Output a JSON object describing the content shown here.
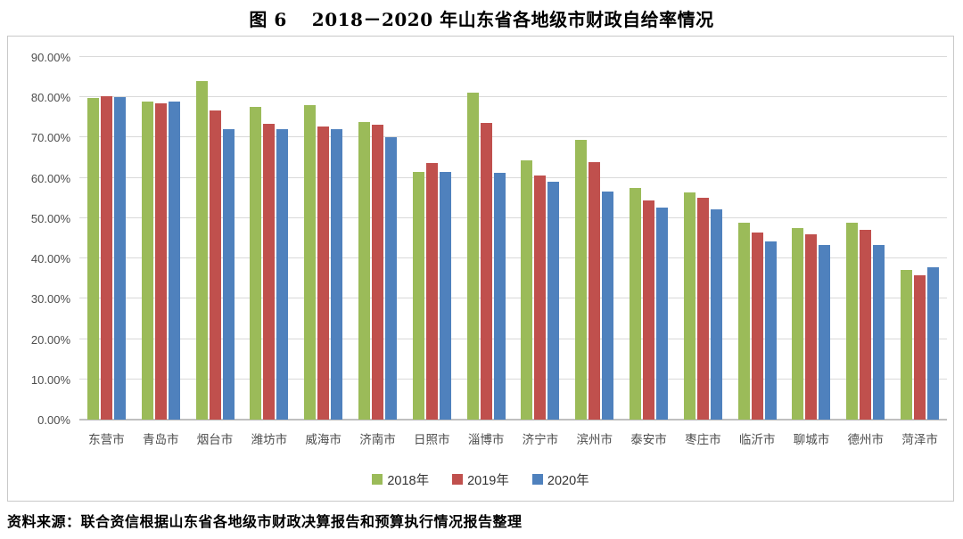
{
  "chart_data": {
    "type": "bar",
    "title_prefix": "图 6",
    "title": "2018－2020 年山东省各地级市财政自给率情况",
    "categories": [
      "东营市",
      "青岛市",
      "烟台市",
      "潍坊市",
      "威海市",
      "济南市",
      "日照市",
      "淄博市",
      "济宁市",
      "滨州市",
      "泰安市",
      "枣庄市",
      "临沂市",
      "聊城市",
      "德州市",
      "菏泽市"
    ],
    "series": [
      {
        "name": "2018年",
        "color": "#9BBB59",
        "values": [
          79.9,
          78.9,
          84.0,
          77.6,
          78.0,
          73.8,
          61.5,
          81.2,
          64.4,
          69.5,
          57.5,
          56.4,
          48.8,
          47.5,
          48.9,
          37.2
        ]
      },
      {
        "name": "2019年",
        "color": "#C0504D",
        "values": [
          80.2,
          78.6,
          76.7,
          73.5,
          72.8,
          73.1,
          63.6,
          73.7,
          60.7,
          63.9,
          54.3,
          55.0,
          46.5,
          46.0,
          47.1,
          35.9
        ]
      },
      {
        "name": "2020年",
        "color": "#4F81BD",
        "values": [
          80.1,
          78.9,
          72.0,
          72.0,
          72.0,
          70.2,
          61.5,
          61.3,
          59.1,
          56.6,
          52.7,
          52.1,
          44.3,
          43.3,
          43.3,
          37.8
        ]
      }
    ],
    "ylim": [
      0,
      90
    ],
    "ytick_step": 10,
    "ytick_labels": [
      "0.00%",
      "10.00%",
      "20.00%",
      "30.00%",
      "40.00%",
      "50.00%",
      "60.00%",
      "70.00%",
      "80.00%",
      "90.00%"
    ],
    "grid": true,
    "legend_position": "bottom",
    "xlabel": "",
    "ylabel": ""
  },
  "colors": {
    "series_2018": "#9BBB59",
    "series_2019": "#C0504D",
    "series_2020": "#4F81BD",
    "gridline": "#d9d9d9",
    "frame_border": "#c9c9c9"
  },
  "source_note": "资料来源：联合资信根据山东省各地级市财政决算报告和预算执行情况报告整理"
}
